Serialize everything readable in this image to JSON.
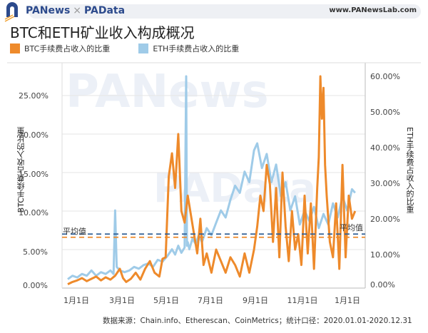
{
  "header": {
    "brand_left": "PANews",
    "brand_sep": "×",
    "brand_right": "PAData",
    "site": "www.PANewsLab.com"
  },
  "title": "BTC和ETH矿业收入构成概况",
  "legend": [
    {
      "label": "BTC手续费占收入的比重",
      "color": "#ee8a2b"
    },
    {
      "label": "ETH手续费占收入的比重",
      "color": "#9fcbe8"
    }
  ],
  "axes": {
    "left_label": "BTC手续费占收入的比重",
    "right_label": "ETH手续费占收入的比重",
    "left_ticks": [
      "0.00%",
      "5.00%",
      "10.00%",
      "15.00%",
      "20.00%",
      "25.00%"
    ],
    "right_ticks": [
      "0.00%",
      "10.00%",
      "20.00%",
      "30.00%",
      "40.00%",
      "50.00%",
      "60.00%"
    ],
    "x_ticks": [
      "1月1日",
      "3月1日",
      "5月1日",
      "7月1日",
      "9月1日",
      "11月1日",
      "1月1日"
    ]
  },
  "annotations": {
    "avg_left": "平均值",
    "avg_right": "平均值"
  },
  "watermarks": {
    "top": "PANews",
    "mid": "PAData"
  },
  "source": "数据来源：Chain.info、Etherescan、CoinMetrics；统计口径：2020.01.01-2020.12.31",
  "colors": {
    "btc": "#ee8a2b",
    "eth": "#9fcbe8",
    "btc_avg": "#ee8a2b",
    "eth_avg": "#2f5e94",
    "grid": "#e6e6e6"
  },
  "chart_data": {
    "type": "line",
    "title": "BTC和ETH矿业收入构成概况",
    "xlabel": "",
    "ylabel": "BTC手续费占收入的比重",
    "y2label": "ETH手续费占收入的比重",
    "ylim": [
      0,
      27.5
    ],
    "y2lim": [
      0,
      62.5
    ],
    "x_ticks": [
      "1月1日",
      "3月1日",
      "5月1日",
      "7月1日",
      "9月1日",
      "11月1日",
      "1月1日"
    ],
    "x_range_days": [
      0,
      366
    ],
    "grid": true,
    "legend_position": "top",
    "series": [
      {
        "name": "BTC手续费占收入的比重",
        "axis": "left",
        "unit": "%",
        "x_day": [
          0,
          6,
          12,
          18,
          24,
          30,
          36,
          42,
          48,
          54,
          60,
          66,
          70,
          74,
          80,
          86,
          92,
          98,
          104,
          110,
          116,
          120,
          124,
          128,
          132,
          136,
          140,
          144,
          148,
          152,
          156,
          160,
          164,
          168,
          172,
          176,
          182,
          188,
          194,
          200,
          206,
          212,
          218,
          224,
          230,
          236,
          240,
          244,
          248,
          252,
          256,
          260,
          264,
          268,
          272,
          276,
          280,
          284,
          288,
          292,
          296,
          300,
          304,
          308,
          312,
          316,
          318,
          320,
          322,
          324,
          326,
          328,
          332,
          336,
          340,
          344,
          348,
          352,
          356,
          360,
          364
        ],
        "values": [
          0.5,
          0.8,
          1.0,
          1.3,
          0.9,
          1.2,
          1.5,
          1.0,
          1.4,
          1.1,
          1.6,
          2.5,
          1.3,
          0.8,
          1.2,
          2.0,
          1.1,
          2.5,
          3.5,
          2.0,
          1.5,
          3.8,
          4.0,
          14.5,
          17.5,
          13.0,
          20.0,
          10.0,
          8.5,
          12.0,
          9.5,
          7.0,
          4.5,
          9.0,
          3.0,
          4.5,
          2.0,
          5.0,
          3.5,
          2.0,
          4.0,
          3.0,
          1.5,
          4.5,
          2.0,
          5.0,
          8.0,
          12.0,
          10.0,
          16.0,
          13.5,
          6.0,
          13.0,
          4.0,
          15.0,
          8.0,
          3.5,
          10.0,
          5.0,
          7.0,
          3.0,
          12.0,
          4.5,
          11.0,
          2.5,
          13.0,
          17.0,
          27.5,
          22.0,
          26.0,
          16.0,
          12.0,
          6.0,
          4.0,
          11.0,
          2.5,
          16.0,
          4.0,
          12.0,
          9.0,
          10.0
        ]
      },
      {
        "name": "ETH手续费占收入的比重",
        "axis": "right",
        "unit": "%",
        "x_day": [
          0,
          6,
          12,
          18,
          24,
          30,
          36,
          42,
          48,
          54,
          58,
          60,
          62,
          66,
          72,
          78,
          84,
          90,
          96,
          102,
          108,
          114,
          120,
          126,
          132,
          136,
          140,
          144,
          148,
          150,
          151,
          152,
          154,
          158,
          162,
          166,
          170,
          176,
          182,
          188,
          194,
          200,
          206,
          212,
          218,
          224,
          230,
          236,
          240,
          246,
          252,
          258,
          264,
          270,
          276,
          282,
          288,
          294,
          300,
          306,
          312,
          318,
          324,
          330,
          336,
          342,
          348,
          354,
          360,
          364
        ],
        "values": [
          2.5,
          3.5,
          3.0,
          4.0,
          3.5,
          5.0,
          3.5,
          4.5,
          4.0,
          5.0,
          4.0,
          22.0,
          6.0,
          5.0,
          4.5,
          5.0,
          6.0,
          5.5,
          6.5,
          7.0,
          6.0,
          8.0,
          7.5,
          9.0,
          11.0,
          9.5,
          12.0,
          10.0,
          11.5,
          60.0,
          12.0,
          13.0,
          11.0,
          14.0,
          12.5,
          15.0,
          13.0,
          17.0,
          15.0,
          18.5,
          22.0,
          20.0,
          25.0,
          29.0,
          27.0,
          33.0,
          30.0,
          39.0,
          41.0,
          34.0,
          38.0,
          30.0,
          35.0,
          26.0,
          30.0,
          22.0,
          26.0,
          18.0,
          22.0,
          19.0,
          23.0,
          17.0,
          21.0,
          18.0,
          24.0,
          20.0,
          26.0,
          22.0,
          28.0,
          27.0
        ]
      },
      {
        "name": "BTC平均值",
        "axis": "left",
        "style": "dashed",
        "values": [
          6.6
        ]
      },
      {
        "name": "ETH平均值",
        "axis": "right",
        "style": "dashed",
        "values": [
          15.3
        ]
      }
    ]
  }
}
